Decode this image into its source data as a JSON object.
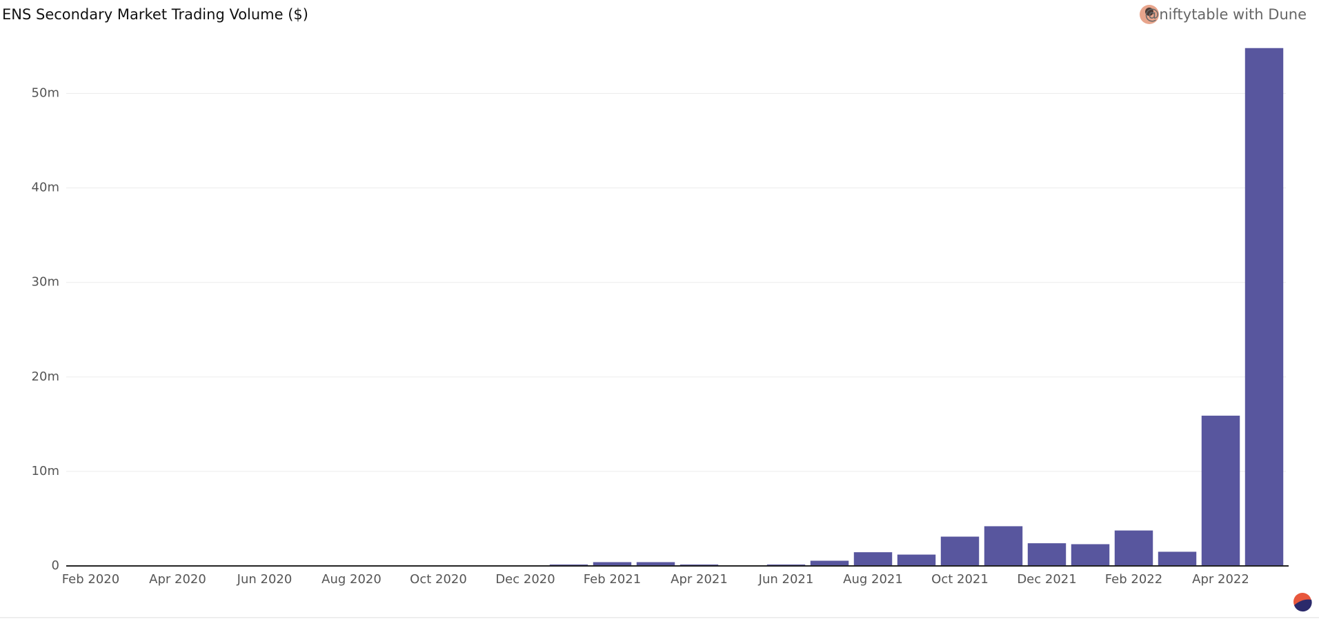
{
  "chart_data": {
    "type": "bar",
    "title": "ENS Secondary Market Trading Volume ($)",
    "attribution": "@niftytable with Dune",
    "categories": [
      "Feb 2020",
      null,
      "Apr 2020",
      null,
      "Jun 2020",
      null,
      "Aug 2020",
      null,
      "Oct 2020",
      null,
      "Dec 2020",
      null,
      "Feb 2021",
      null,
      "Apr 2021",
      null,
      "Jun 2021",
      null,
      "Aug 2021",
      null,
      "Oct 2021",
      null,
      "Dec 2021",
      null,
      "Feb 2022",
      null,
      "Apr 2022",
      null
    ],
    "values": [
      20000,
      20000,
      20000,
      20000,
      20000,
      20000,
      20000,
      20000,
      20000,
      20000,
      20000,
      150000,
      400000,
      400000,
      150000,
      30000,
      150000,
      550000,
      1450000,
      1200000,
      3100000,
      4200000,
      2400000,
      2300000,
      3750000,
      1500000,
      15900000,
      54800000
    ],
    "color": "#58569e",
    "ylim": [
      0,
      55000000
    ],
    "yticks": [
      {
        "value": 0,
        "label": "0"
      },
      {
        "value": 10000000,
        "label": "10m"
      },
      {
        "value": 20000000,
        "label": "20m"
      },
      {
        "value": 30000000,
        "label": "30m"
      },
      {
        "value": 40000000,
        "label": "40m"
      },
      {
        "value": 50000000,
        "label": "50m"
      }
    ],
    "grid": true
  }
}
